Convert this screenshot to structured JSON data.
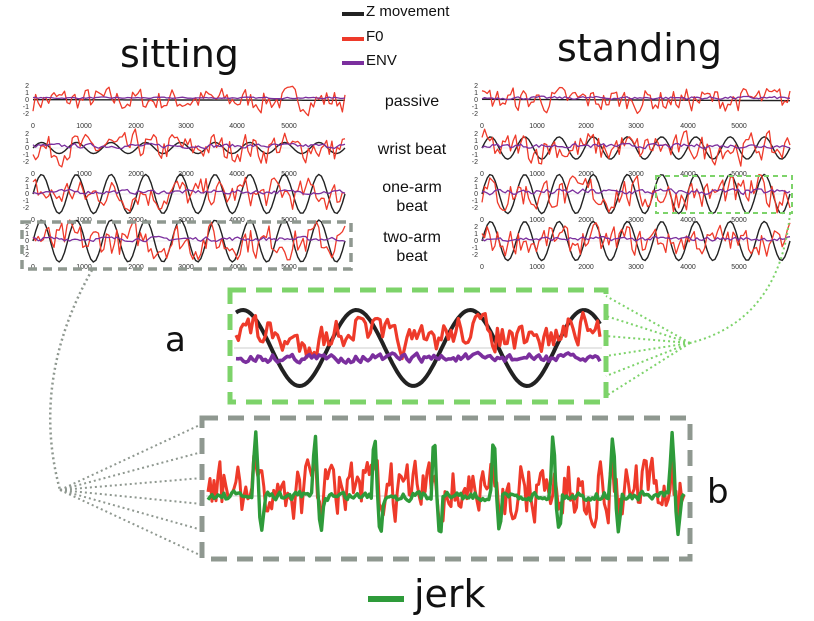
{
  "titles": {
    "left": "sitting",
    "right": "standing"
  },
  "legend": {
    "items": [
      {
        "label": "Z movement",
        "color": "#222222"
      },
      {
        "label": "F0",
        "color": "#ee3a2a"
      },
      {
        "label": "ENV",
        "color": "#7b2f9e"
      }
    ],
    "jerk": {
      "label": "jerk",
      "color": "#2e9b3a"
    }
  },
  "conditions": [
    "passive",
    "wrist beat",
    "one-arm\nbeat",
    "two-arm\nbeat"
  ],
  "panel_letters": {
    "a": "a",
    "b": "b"
  },
  "colors": {
    "movement": "#222222",
    "f0": "#ee3a2a",
    "env": "#7b2f9e",
    "jerk": "#2e9b3a",
    "green_box": "#7dd36a",
    "gray_box": "#8f9890"
  },
  "chart_data": [
    {
      "type": "line",
      "panel": "sitting",
      "x_ticks": [
        "0",
        "1000",
        "2000",
        "3000",
        "4000",
        "5000"
      ],
      "y_ticks": [
        "2",
        "1",
        "0",
        "-1",
        "-2"
      ],
      "xlim": [
        0,
        6000
      ],
      "ylim": [
        -2,
        2
      ],
      "rows": [
        {
          "condition": "passive",
          "movement_amp": 0.05,
          "movement_cycles": 0,
          "f0_amp": 0.5,
          "env_amp": 0.1
        },
        {
          "condition": "wrist beat",
          "movement_amp": 0.4,
          "movement_cycles": 9,
          "f0_amp": 0.6,
          "env_amp": 0.3
        },
        {
          "condition": "one-arm beat",
          "movement_amp": 1.4,
          "movement_cycles": 9,
          "f0_amp": 0.6,
          "env_amp": 0.3
        },
        {
          "condition": "two-arm beat",
          "movement_amp": 1.5,
          "movement_cycles": 9,
          "f0_amp": 0.7,
          "env_amp": 0.3
        }
      ]
    },
    {
      "type": "line",
      "panel": "standing",
      "x_ticks": [
        "0",
        "1000",
        "2000",
        "3000",
        "4000",
        "5000"
      ],
      "y_ticks": [
        "2",
        "1",
        "0",
        "-1",
        "-2"
      ],
      "xlim": [
        0,
        6000
      ],
      "ylim": [
        -2,
        2
      ],
      "rows": [
        {
          "condition": "passive",
          "movement_amp": 0.1,
          "movement_cycles": 0,
          "f0_amp": 0.5,
          "env_amp": 0.2
        },
        {
          "condition": "wrist beat",
          "movement_amp": 0.8,
          "movement_cycles": 9,
          "f0_amp": 0.6,
          "env_amp": 0.3
        },
        {
          "condition": "one-arm beat",
          "movement_amp": 1.4,
          "movement_cycles": 9,
          "f0_amp": 0.7,
          "env_amp": 0.4
        },
        {
          "condition": "two-arm beat",
          "movement_amp": 1.4,
          "movement_cycles": 9,
          "f0_amp": 0.6,
          "env_amp": 0.3
        }
      ]
    },
    {
      "type": "line",
      "panel": "a",
      "series": [
        {
          "name": "Z movement",
          "cycles": 3
        },
        {
          "name": "F0"
        },
        {
          "name": "ENV"
        }
      ]
    },
    {
      "type": "line",
      "panel": "b",
      "series": [
        {
          "name": "jerk",
          "peaks": 8
        },
        {
          "name": "F0"
        }
      ]
    }
  ]
}
